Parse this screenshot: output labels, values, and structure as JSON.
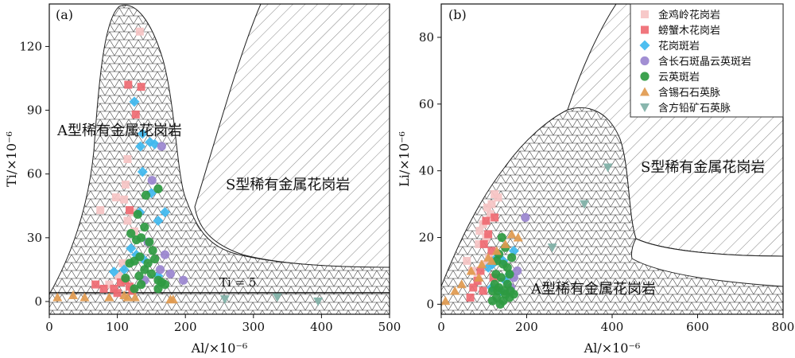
{
  "chart_data": [
    {
      "panel": "(a)",
      "type": "scatter",
      "xlabel": "Al/×10⁻⁶",
      "ylabel": "Ti/×10⁻⁶",
      "xlim": [
        0,
        500
      ],
      "ylim": [
        -6,
        140
      ],
      "xticks": [
        "0",
        "100",
        "200",
        "300",
        "400",
        "500"
      ],
      "yticks": [
        "0",
        "30",
        "60",
        "90",
        "120"
      ],
      "annotations": [
        "A型稀有金属花岗岩",
        "S型稀有金属花岗岩",
        "Ti = 5"
      ],
      "reference_line": {
        "y": 5
      },
      "series": [
        {
          "name": "金鸡岭花岗岩",
          "marker": "square",
          "color": "#f6c4c4",
          "points": [
            [
              133,
              127
            ],
            [
              115,
              67
            ],
            [
              112,
              55
            ],
            [
              110,
              48
            ],
            [
              75,
              43
            ],
            [
              98,
              49
            ],
            [
              122,
              42
            ],
            [
              115,
              38
            ],
            [
              88,
              8
            ],
            [
              108,
              18
            ],
            [
              102,
              12
            ],
            [
              125,
              33
            ]
          ]
        },
        {
          "name": "螃蟹木花岗岩",
          "marker": "square",
          "color": "#ef6a72",
          "points": [
            [
              116,
              102
            ],
            [
              135,
              101
            ],
            [
              127,
              88
            ],
            [
              118,
              43
            ],
            [
              68,
              8
            ],
            [
              80,
              6
            ],
            [
              95,
              6
            ],
            [
              105,
              9
            ],
            [
              112,
              10
            ],
            [
              118,
              7
            ],
            [
              122,
              5
            ],
            [
              100,
              4
            ]
          ]
        },
        {
          "name": "花岗斑岩",
          "marker": "diamond",
          "color": "#3fb8ef",
          "points": [
            [
              125,
              94
            ],
            [
              137,
              79
            ],
            [
              148,
              75
            ],
            [
              155,
              74
            ],
            [
              134,
              73
            ],
            [
              137,
              61
            ],
            [
              150,
              51
            ],
            [
              133,
              42
            ],
            [
              170,
              42
            ],
            [
              160,
              38
            ],
            [
              120,
              25
            ],
            [
              128,
              22
            ],
            [
              138,
              20
            ],
            [
              110,
              15
            ],
            [
              95,
              14
            ],
            [
              160,
              12
            ]
          ]
        },
        {
          "name": "含长石斑晶云英斑岩",
          "marker": "circle",
          "color": "#9a86cf",
          "points": [
            [
              165,
              73
            ],
            [
              151,
              57
            ],
            [
              170,
              22
            ],
            [
              163,
              15
            ],
            [
              197,
              10
            ],
            [
              178,
              13
            ],
            [
              145,
              28
            ],
            [
              140,
              10
            ]
          ]
        },
        {
          "name": "云英斑岩",
          "marker": "circle",
          "color": "#2e9a41",
          "points": [
            [
              160,
              53
            ],
            [
              142,
              50
            ],
            [
              130,
              41
            ],
            [
              140,
              35
            ],
            [
              135,
              30
            ],
            [
              147,
              28
            ],
            [
              152,
              24
            ],
            [
              120,
              32
            ],
            [
              128,
              29
            ],
            [
              133,
              21
            ],
            [
              125,
              19
            ],
            [
              118,
              18
            ],
            [
              140,
              15
            ],
            [
              150,
              13
            ],
            [
              160,
              10
            ],
            [
              165,
              9
            ],
            [
              170,
              8
            ],
            [
              160,
              6
            ],
            [
              132,
              12
            ],
            [
              145,
              18
            ],
            [
              155,
              20
            ],
            [
              135,
              8
            ],
            [
              125,
              6
            ],
            [
              112,
              11
            ]
          ]
        },
        {
          "name": "含锡石石英脉",
          "marker": "triangle-up",
          "color": "#e19a4f",
          "points": [
            [
              12,
              2
            ],
            [
              35,
              3
            ],
            [
              52,
              2
            ],
            [
              88,
              2
            ],
            [
              110,
              3
            ],
            [
              115,
              2
            ],
            [
              126,
              2
            ],
            [
              178,
              1
            ],
            [
              182,
              1
            ]
          ]
        },
        {
          "name": "含方铅矿石英脉",
          "marker": "triangle-down",
          "color": "#7fb0a6",
          "points": [
            [
              258,
              1
            ],
            [
              335,
              2
            ],
            [
              395,
              0
            ]
          ]
        }
      ]
    },
    {
      "panel": "(b)",
      "type": "scatter",
      "xlabel": "Al/×10⁻⁶",
      "ylabel": "Li/×10⁻⁶",
      "xlim": [
        0,
        800
      ],
      "ylim": [
        -3,
        90
      ],
      "xticks": [
        "0",
        "200",
        "400",
        "600",
        "800"
      ],
      "yticks": [
        "0",
        "20",
        "40",
        "60",
        "80"
      ],
      "annotations": [
        "S型稀有金属花岗岩",
        "A型稀有金属花岗岩"
      ],
      "series": [
        {
          "name": "金鸡岭花岗岩",
          "marker": "square",
          "color": "#f6c4c4",
          "points": [
            [
              125,
              33
            ],
            [
              133,
              32
            ],
            [
              118,
              30
            ],
            [
              108,
              29
            ],
            [
              115,
              27
            ],
            [
              98,
              24
            ],
            [
              90,
              22
            ],
            [
              88,
              18
            ],
            [
              105,
              20
            ],
            [
              112,
              14
            ],
            [
              100,
              12
            ],
            [
              60,
              13
            ],
            [
              72,
              10
            ],
            [
              85,
              8
            ]
          ]
        },
        {
          "name": "螃蟹木花岗岩",
          "marker": "square",
          "color": "#ef6a72",
          "points": [
            [
              125,
              26
            ],
            [
              105,
              25
            ],
            [
              110,
              21
            ],
            [
              100,
              18
            ],
            [
              118,
              16
            ],
            [
              92,
              10
            ],
            [
              85,
              7
            ],
            [
              75,
              5
            ],
            [
              68,
              2
            ],
            [
              98,
              4
            ],
            [
              122,
              8
            ]
          ]
        },
        {
          "name": "花岗斑岩",
          "marker": "diamond",
          "color": "#3fb8ef",
          "points": [
            [
              170,
              16
            ],
            [
              130,
              14
            ],
            [
              145,
              13
            ],
            [
              120,
              12
            ],
            [
              110,
              11
            ],
            [
              160,
              9
            ],
            [
              150,
              7
            ],
            [
              140,
              4
            ],
            [
              118,
              5
            ]
          ]
        },
        {
          "name": "含长石斑晶云英斑岩",
          "marker": "circle",
          "color": "#9a86cf",
          "points": [
            [
              197,
              26
            ],
            [
              170,
              8
            ],
            [
              163,
              5
            ],
            [
              178,
              10
            ]
          ]
        },
        {
          "name": "云英斑岩",
          "marker": "circle",
          "color": "#2e9a41",
          "points": [
            [
              142,
              20
            ],
            [
              150,
              17
            ],
            [
              135,
              15
            ],
            [
              165,
              14
            ],
            [
              130,
              13
            ],
            [
              145,
              12
            ],
            [
              155,
              11
            ],
            [
              160,
              9
            ],
            [
              128,
              9
            ],
            [
              140,
              8
            ],
            [
              125,
              6
            ],
            [
              135,
              5
            ],
            [
              120,
              4
            ],
            [
              150,
              3
            ],
            [
              160,
              2
            ],
            [
              130,
              2
            ],
            [
              145,
              1
            ],
            [
              120,
              1
            ],
            [
              138,
              0
            ],
            [
              170,
              3
            ],
            [
              155,
              6
            ],
            [
              148,
              4
            ],
            [
              162,
              4
            ],
            [
              132,
              4
            ]
          ]
        },
        {
          "name": "含锡石石英脉",
          "marker": "triangle-up",
          "color": "#e19a4f",
          "points": [
            [
              10,
              1
            ],
            [
              32,
              4
            ],
            [
              48,
              6
            ],
            [
              70,
              10
            ],
            [
              95,
              12
            ],
            [
              110,
              14
            ],
            [
              130,
              16
            ],
            [
              150,
              18
            ],
            [
              165,
              21
            ],
            [
              180,
              20
            ],
            [
              118,
              13
            ],
            [
              88,
              8
            ]
          ]
        },
        {
          "name": "含方铅矿石英脉",
          "marker": "triangle-down",
          "color": "#7fb0a6",
          "points": [
            [
              390,
              41
            ],
            [
              335,
              30
            ],
            [
              260,
              17
            ]
          ]
        }
      ]
    }
  ],
  "legend": {
    "position": "top-right of panel (b)",
    "items": [
      {
        "label": "金鸡岭花岗岩",
        "marker": "square",
        "color": "#f6c4c4"
      },
      {
        "label": "螃蟹木花岗岩",
        "marker": "square",
        "color": "#ef6a72"
      },
      {
        "label": "花岗斑岩",
        "marker": "diamond",
        "color": "#3fb8ef"
      },
      {
        "label": "含长石斑晶云英斑岩",
        "marker": "circle",
        "color": "#9a86cf"
      },
      {
        "label": "云英斑岩",
        "marker": "circle",
        "color": "#2e9a41"
      },
      {
        "label": "含锡石石英脉",
        "marker": "triangle-up",
        "color": "#e19a4f"
      },
      {
        "label": "含方铅矿石英脉",
        "marker": "triangle-down",
        "color": "#7fb0a6"
      }
    ]
  }
}
